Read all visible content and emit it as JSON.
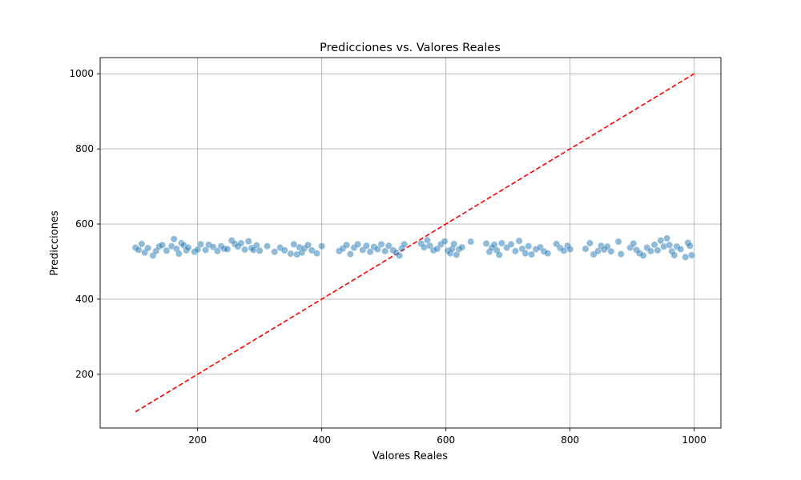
{
  "chart_data": {
    "type": "scatter",
    "title": "Predicciones vs. Valores Reales",
    "xlabel": "Valores Reales",
    "ylabel": "Predicciones",
    "xlim": [
      43,
      1043
    ],
    "ylim": [
      57,
      1043
    ],
    "xticks": [
      "200",
      "400",
      "600",
      "800",
      "1000"
    ],
    "yticks": [
      "200",
      "400",
      "600",
      "800",
      "1000"
    ],
    "xtick_values": [
      200,
      400,
      600,
      800,
      1000
    ],
    "ytick_values": [
      200,
      400,
      600,
      800,
      1000
    ],
    "grid": true,
    "colors": {
      "points": "#1f77b4",
      "reference_line": "#ff0000",
      "grid": "#b0b0b0"
    },
    "reference_line": {
      "x": [
        100,
        1000
      ],
      "y": [
        100,
        1000
      ],
      "style": "dashed"
    },
    "series": [
      {
        "marker": "circle",
        "alpha": 0.5,
        "x": [
          100,
          105,
          110,
          115,
          120,
          128,
          133,
          138,
          143,
          150,
          158,
          162,
          166,
          170,
          174,
          178,
          182,
          185,
          195,
          200,
          205,
          213,
          218,
          225,
          232,
          238,
          243,
          248,
          255,
          260,
          265,
          270,
          276,
          282,
          287,
          290,
          295,
          300,
          312,
          324,
          333,
          340,
          350,
          355,
          360,
          364,
          368,
          372,
          378,
          384,
          392,
          400,
          428,
          434,
          440,
          446,
          452,
          458,
          466,
          472,
          478,
          484,
          490,
          496,
          502,
          508,
          515,
          520,
          525,
          529,
          533,
          560,
          565,
          570,
          574,
          580,
          586,
          592,
          598,
          603,
          607,
          610,
          613,
          617,
          621,
          626,
          640,
          665,
          670,
          674,
          678,
          682,
          686,
          690,
          698,
          705,
          712,
          718,
          723,
          728,
          733,
          738,
          745,
          752,
          758,
          764,
          778,
          784,
          790,
          796,
          800,
          825,
          832,
          838,
          845,
          850,
          855,
          860,
          866,
          878,
          882,
          897,
          902,
          907,
          912,
          918,
          924,
          930,
          936,
          941,
          946,
          951,
          956,
          960,
          964,
          968,
          972,
          978,
          986,
          990,
          993,
          996
        ],
        "y": [
          537,
          531,
          547,
          524,
          536,
          516,
          528,
          540,
          544,
          529,
          541,
          560,
          534,
          521,
          549,
          543,
          530,
          537,
          526,
          532,
          546,
          531,
          545,
          539,
          528,
          541,
          534,
          533,
          556,
          547,
          540,
          549,
          532,
          554,
          536,
          531,
          543,
          529,
          541,
          526,
          537,
          530,
          521,
          546,
          519,
          538,
          524,
          535,
          544,
          530,
          522,
          541,
          528,
          535,
          544,
          520,
          537,
          546,
          531,
          542,
          526,
          539,
          533,
          546,
          528,
          542,
          530,
          524,
          516,
          535,
          546,
          548,
          538,
          557,
          542,
          530,
          534,
          546,
          554,
          529,
          522,
          534,
          547,
          518,
          533,
          538,
          553,
          548,
          526,
          537,
          545,
          530,
          518,
          549,
          537,
          546,
          528,
          555,
          534,
          522,
          541,
          519,
          533,
          538,
          527,
          522,
          547,
          536,
          529,
          542,
          533,
          534,
          549,
          519,
          528,
          542,
          532,
          540,
          527,
          553,
          520,
          537,
          548,
          531,
          522,
          516,
          537,
          528,
          545,
          530,
          556,
          540,
          562,
          544,
          527,
          517,
          540,
          533,
          512,
          550,
          542,
          517
        ]
      }
    ]
  }
}
